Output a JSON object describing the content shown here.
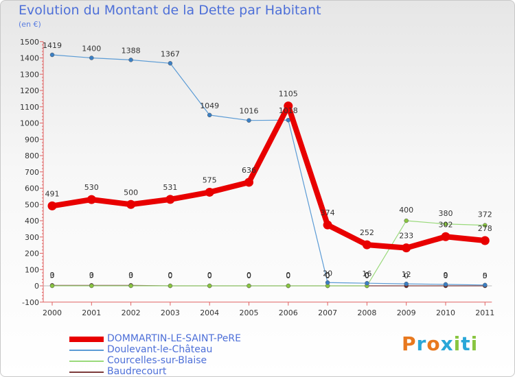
{
  "title": "Evolution du Montant de la Dette par Habitant",
  "unit": "(en €)",
  "brand": {
    "letters": [
      "P",
      "r",
      "o",
      "x",
      "i",
      "t",
      "i"
    ],
    "colors": [
      "#e8781e",
      "#2aa7d8",
      "#e8781e",
      "#2aa7d8",
      "#89c540",
      "#2aa7d8",
      "#89c540"
    ]
  },
  "chart_data": {
    "type": "line",
    "categories": [
      "2000",
      "2001",
      "2002",
      "2003",
      "2004",
      "2005",
      "2006",
      "2007",
      "2008",
      "2009",
      "2010",
      "2011"
    ],
    "ylim": [
      -100,
      1500
    ],
    "yticks": [
      -100,
      0,
      100,
      200,
      300,
      400,
      500,
      600,
      700,
      800,
      900,
      1000,
      1100,
      1200,
      1300,
      1400,
      1500
    ],
    "grid": false,
    "legend_position": "bottom-left",
    "series": [
      {
        "name": "DOMMARTIN-LE-SAINT-PeRE",
        "color": "#e80000",
        "values": [
          491,
          530,
          500,
          531,
          575,
          636,
          1105,
          374,
          252,
          233,
          302,
          278
        ],
        "labels": [
          "491",
          "530",
          "500",
          "531",
          "575",
          "636",
          "1105",
          "374",
          "252",
          "233",
          "302",
          "278"
        ]
      },
      {
        "name": "Doulevant-le-Château",
        "color": "#5b9bd5",
        "values": [
          1419,
          1400,
          1388,
          1367,
          1049,
          1016,
          1018,
          20,
          16,
          12,
          9,
          5
        ],
        "labels": [
          "1419",
          "1400",
          "1388",
          "1367",
          "1049",
          "1016",
          "1018",
          "20",
          "16",
          "12",
          "9",
          "5"
        ]
      },
      {
        "name": "Courcelles-sur-Blaise",
        "color": "#99d97a",
        "values": [
          0,
          0,
          0,
          0,
          0,
          0,
          0,
          0,
          0,
          400,
          380,
          372
        ],
        "labels": [
          "0",
          "0",
          "0",
          "0",
          "0",
          "0",
          "0",
          "0",
          "0",
          "400",
          "380",
          "372"
        ]
      },
      {
        "name": "Baudrecourt",
        "color": "#7b3a3a",
        "values": [
          3,
          3,
          3,
          0,
          0,
          0,
          0,
          0,
          0,
          0,
          0,
          0
        ],
        "labels": [
          "3",
          "3",
          "3",
          "0",
          "0",
          "0",
          "0",
          "0",
          "0",
          "0",
          "0",
          "0"
        ]
      }
    ]
  }
}
